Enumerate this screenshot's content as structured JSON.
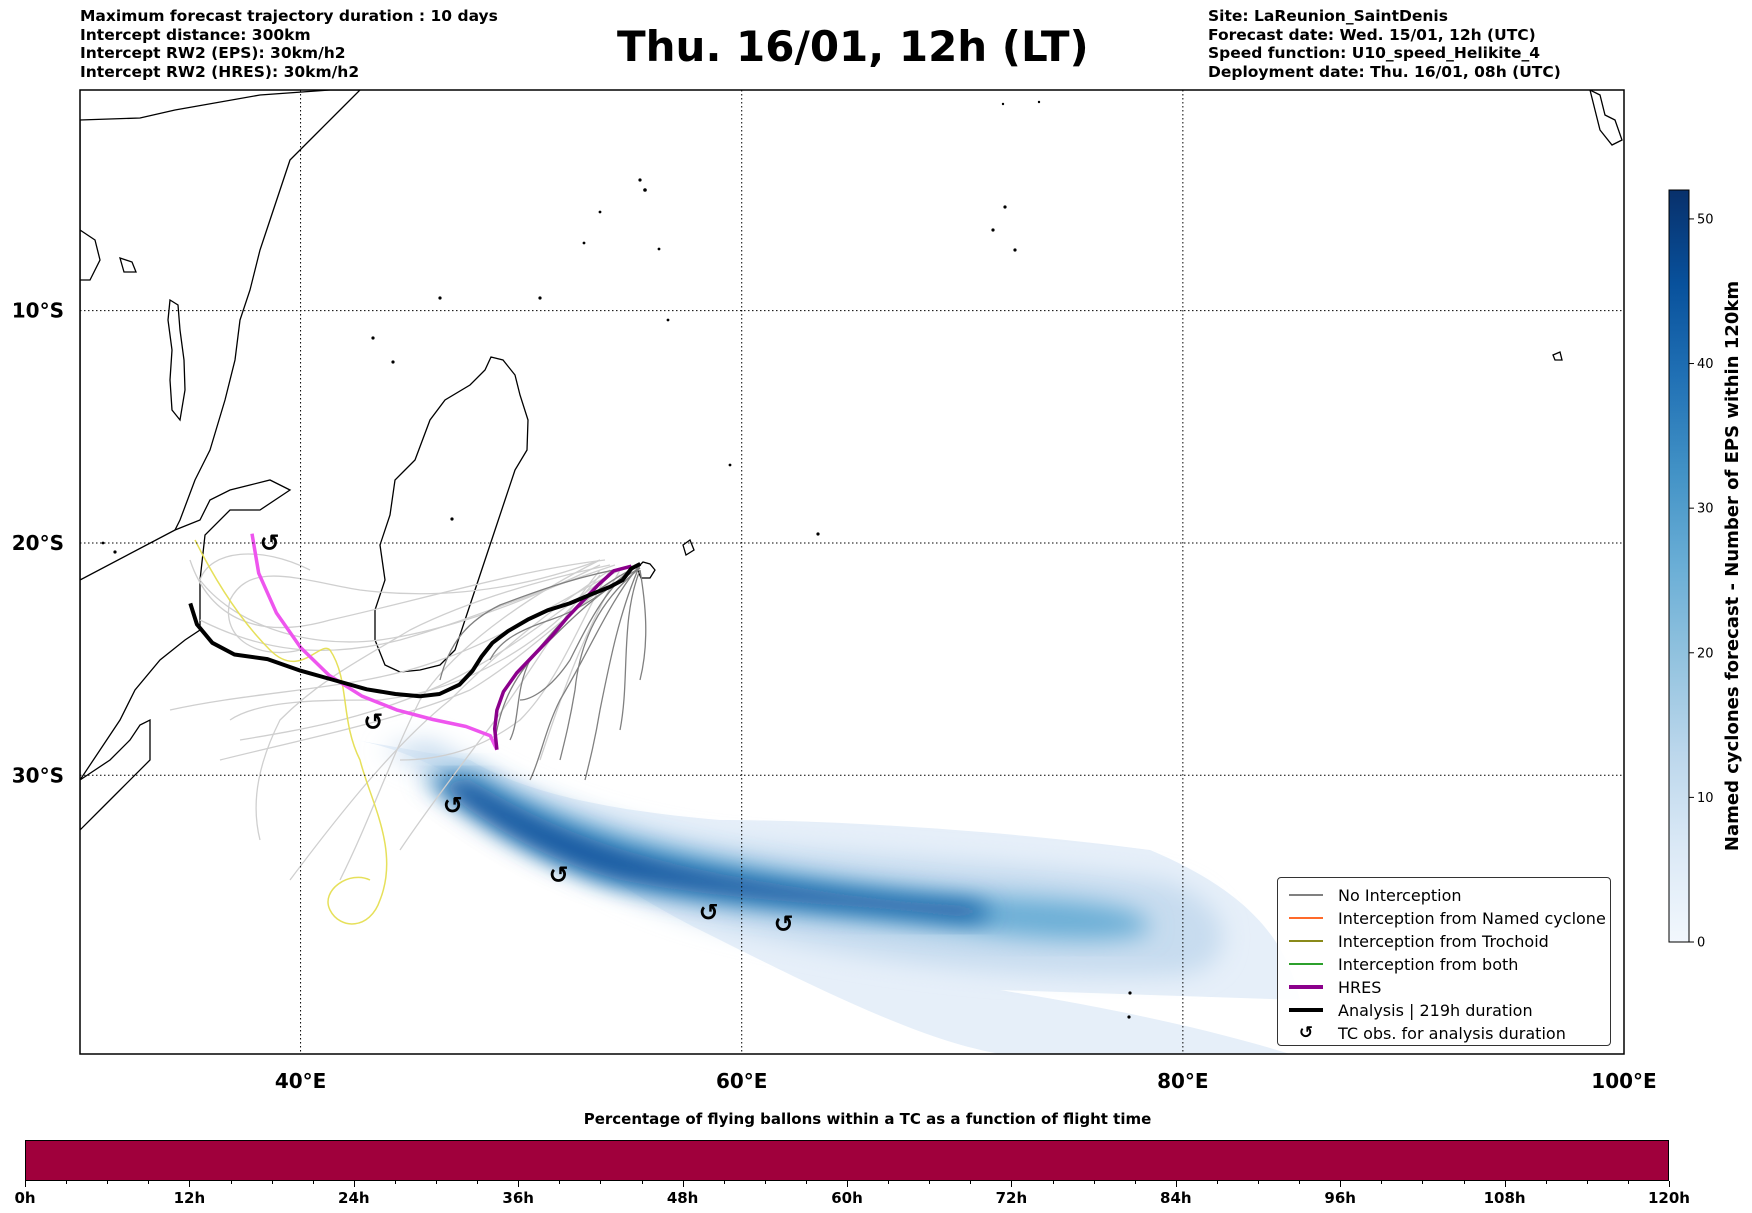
{
  "header": {
    "left_lines": [
      "Maximum forecast trajectory duration : 10 days",
      "Intercept distance: 300km",
      "Intercept RW2 (EPS):  30km/h2",
      "Intercept RW2 (HRES): 30km/h2"
    ],
    "title": "Thu. 16/01, 12h (LT)",
    "right_lines": [
      "Site: LaReunion_SaintDenis",
      "Forecast date: Wed. 15/01, 12h (UTC)",
      "Speed function: U10_speed_Helikite_4",
      "Deployment date: Thu. 16/01, 08h (UTC)"
    ]
  },
  "map": {
    "lon_range": [
      30,
      100
    ],
    "lat_range": [
      -42,
      -0.5
    ],
    "x_ticks": [
      {
        "lon": 40,
        "label": "40°E"
      },
      {
        "lon": 60,
        "label": "60°E"
      },
      {
        "lon": 80,
        "label": "80°E"
      },
      {
        "lon": 100,
        "label": "100°E"
      }
    ],
    "y_ticks": [
      {
        "lat": -10,
        "label": "10°S"
      },
      {
        "lat": -20,
        "label": "20°S"
      },
      {
        "lat": -30,
        "label": "30°S"
      }
    ],
    "colors": {
      "no_interception": "#808080",
      "named_cyclone": "#ff6a2a",
      "trochoid": "#8a8a1a",
      "both": "#2ca02c",
      "hres": "#8b008b",
      "hres_light": "#ee55ee",
      "analysis": "#000000",
      "ensemble_light": "#cfcfcf",
      "yellow_track": "#e6e05a"
    },
    "tc_obs_glyph": "↺",
    "tc_obs_points": [
      {
        "lon": 38.6,
        "lat": -20.0
      },
      {
        "lon": 43.3,
        "lat": -27.7
      },
      {
        "lon": 46.9,
        "lat": -31.3
      },
      {
        "lon": 51.7,
        "lat": -34.3
      },
      {
        "lon": 58.5,
        "lat": -35.9
      },
      {
        "lon": 61.9,
        "lat": -36.4
      }
    ],
    "analysis_track": [
      [
        55.4,
        -20.9
      ],
      [
        55.0,
        -21.1
      ],
      [
        54.6,
        -21.6
      ],
      [
        54.0,
        -21.9
      ],
      [
        53.2,
        -22.2
      ],
      [
        52.2,
        -22.6
      ],
      [
        51.2,
        -22.9
      ],
      [
        50.3,
        -23.3
      ],
      [
        49.4,
        -23.8
      ],
      [
        48.7,
        -24.3
      ],
      [
        48.2,
        -24.9
      ],
      [
        47.8,
        -25.5
      ],
      [
        47.2,
        -26.1
      ],
      [
        46.3,
        -26.5
      ],
      [
        45.4,
        -26.6
      ],
      [
        44.3,
        -26.5
      ],
      [
        43.0,
        -26.3
      ],
      [
        41.5,
        -25.9
      ],
      [
        40.0,
        -25.5
      ],
      [
        38.5,
        -25.0
      ],
      [
        37.0,
        -24.8
      ],
      [
        36.0,
        -24.3
      ],
      [
        35.3,
        -23.5
      ],
      [
        35.0,
        -22.6
      ]
    ],
    "hres_track": [
      [
        55.0,
        -21.0
      ],
      [
        54.2,
        -21.2
      ],
      [
        53.5,
        -21.8
      ],
      [
        52.8,
        -22.5
      ],
      [
        52.1,
        -23.2
      ],
      [
        51.4,
        -24.0
      ],
      [
        50.6,
        -24.8
      ],
      [
        49.8,
        -25.6
      ],
      [
        49.2,
        -26.4
      ],
      [
        48.9,
        -27.2
      ],
      [
        48.8,
        -28.0
      ],
      [
        48.9,
        -28.9
      ]
    ],
    "hres_light_track": [
      [
        48.9,
        -28.9
      ],
      [
        48.6,
        -28.3
      ],
      [
        47.5,
        -27.9
      ],
      [
        46.0,
        -27.6
      ],
      [
        44.4,
        -27.2
      ],
      [
        42.8,
        -26.6
      ],
      [
        41.3,
        -25.7
      ],
      [
        40.0,
        -24.5
      ],
      [
        38.9,
        -23.0
      ],
      [
        38.1,
        -21.3
      ],
      [
        37.8,
        -19.6
      ]
    ],
    "colorbar": {
      "label": "Named cyclones forecast - Number of EPS within 120km",
      "min": 0,
      "max": 52,
      "ticks": [
        0,
        10,
        20,
        30,
        40,
        50
      ],
      "stops": [
        "#f2f7fd",
        "#dbe9f6",
        "#bcd7ec",
        "#93c3df",
        "#6aaed6",
        "#4292c6",
        "#2171b5",
        "#08519c",
        "#08306b"
      ]
    }
  },
  "legend": {
    "items": [
      {
        "label": "No Interception",
        "type": "line",
        "color_key": "no_interception",
        "width": 1.2
      },
      {
        "label": "Interception from Named cyclone",
        "type": "line",
        "color_key": "named_cyclone",
        "width": 1.2
      },
      {
        "label": "Interception from Trochoid",
        "type": "line",
        "color_key": "trochoid",
        "width": 1.2
      },
      {
        "label": "Interception from both",
        "type": "line",
        "color_key": "both",
        "width": 1.2
      },
      {
        "label": "HRES",
        "type": "line",
        "color_key": "hres",
        "width": 3.5
      },
      {
        "label": "Analysis | 219h duration",
        "type": "line",
        "color_key": "analysis",
        "width": 3.5
      },
      {
        "label": "TC obs. for analysis duration",
        "type": "glyph",
        "color_key": "analysis",
        "width": 0
      }
    ]
  },
  "bottom_bar": {
    "title": "Percentage of flying ballons within a TC as a function of flight time",
    "color": "#a0003c",
    "hours_max": 120,
    "ticks": [
      {
        "h": 0,
        "label": "0h"
      },
      {
        "h": 12,
        "label": "12h"
      },
      {
        "h": 24,
        "label": "24h"
      },
      {
        "h": 36,
        "label": "36h"
      },
      {
        "h": 48,
        "label": "48h"
      },
      {
        "h": 60,
        "label": "60h"
      },
      {
        "h": 72,
        "label": "72h"
      },
      {
        "h": 84,
        "label": "84h"
      },
      {
        "h": 96,
        "label": "96h"
      },
      {
        "h": 108,
        "label": "108h"
      },
      {
        "h": 120,
        "label": "120h"
      }
    ]
  }
}
